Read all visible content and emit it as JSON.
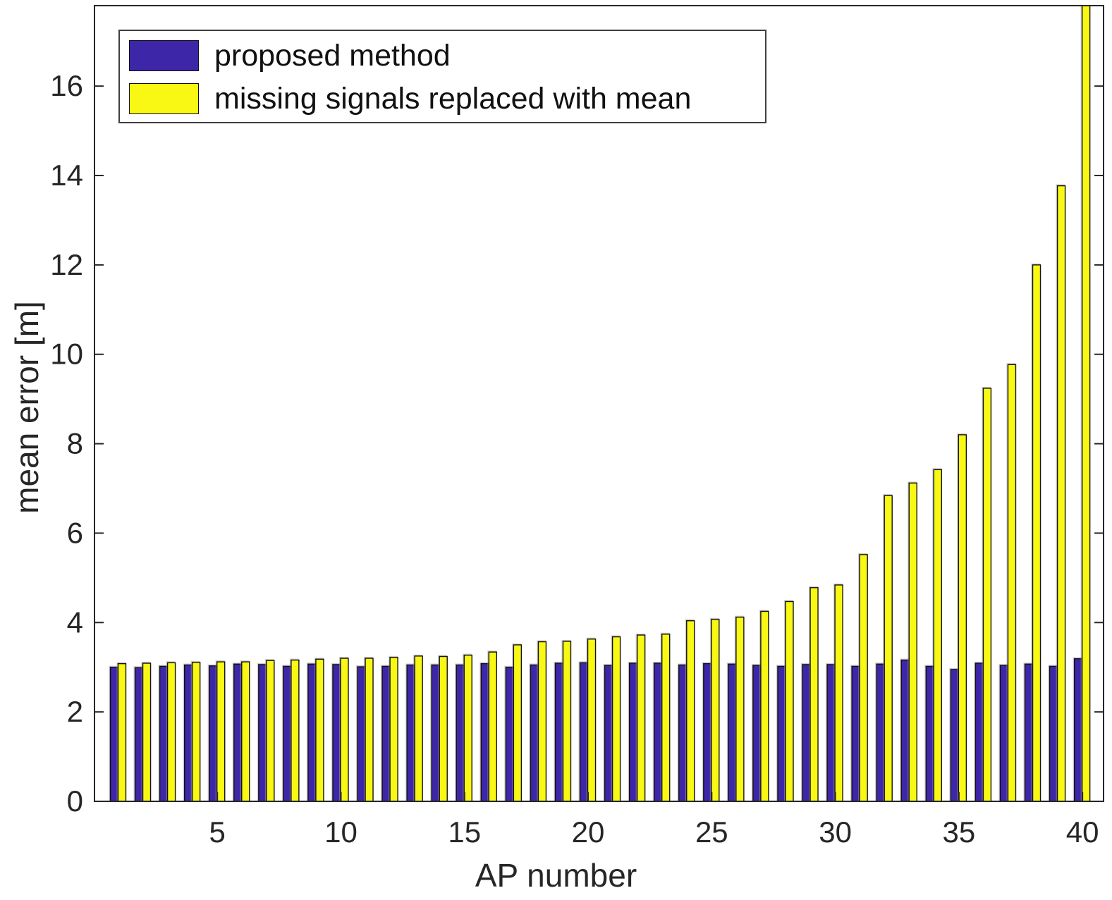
{
  "chart_data": {
    "type": "bar",
    "title": "",
    "xlabel": "AP number",
    "ylabel": "mean error [m]",
    "categories": [
      1,
      2,
      3,
      4,
      5,
      6,
      7,
      8,
      9,
      10,
      11,
      12,
      13,
      14,
      15,
      16,
      17,
      18,
      19,
      20,
      21,
      22,
      23,
      24,
      25,
      26,
      27,
      28,
      29,
      30,
      31,
      32,
      33,
      34,
      35,
      36,
      37,
      38,
      39,
      40
    ],
    "series": [
      {
        "name": "proposed method",
        "color": "#3E26A8",
        "values": [
          3.0,
          2.99,
          3.02,
          3.05,
          3.03,
          3.07,
          3.06,
          3.02,
          3.07,
          3.06,
          3.01,
          3.02,
          3.05,
          3.05,
          3.05,
          3.08,
          3.0,
          3.05,
          3.09,
          3.1,
          3.04,
          3.09,
          3.09,
          3.05,
          3.08,
          3.07,
          3.04,
          3.02,
          3.06,
          3.06,
          3.02,
          3.07,
          3.16,
          3.02,
          2.95,
          3.09,
          3.04,
          3.07,
          3.02,
          3.19
        ]
      },
      {
        "name": "missing signals replaced with mean",
        "color": "#F8F814",
        "values": [
          3.08,
          3.09,
          3.1,
          3.11,
          3.12,
          3.12,
          3.15,
          3.16,
          3.18,
          3.2,
          3.2,
          3.22,
          3.25,
          3.24,
          3.27,
          3.34,
          3.5,
          3.57,
          3.58,
          3.63,
          3.68,
          3.72,
          3.74,
          4.04,
          4.07,
          4.12,
          4.25,
          4.47,
          4.78,
          4.84,
          5.52,
          6.84,
          7.12,
          7.42,
          8.2,
          9.24,
          9.77,
          12.0,
          13.77,
          17.8
        ]
      }
    ],
    "ylim": [
      0,
      17.8
    ],
    "yticks": [
      0,
      2,
      4,
      6,
      8,
      10,
      12,
      14,
      16
    ],
    "xticks": [
      5,
      10,
      15,
      20,
      25,
      30,
      35,
      40
    ],
    "grid": false,
    "legend_position": "top-left",
    "bar_edge_color": "#111111",
    "axis_color": "#262626",
    "tick_label_color": "#262626"
  }
}
